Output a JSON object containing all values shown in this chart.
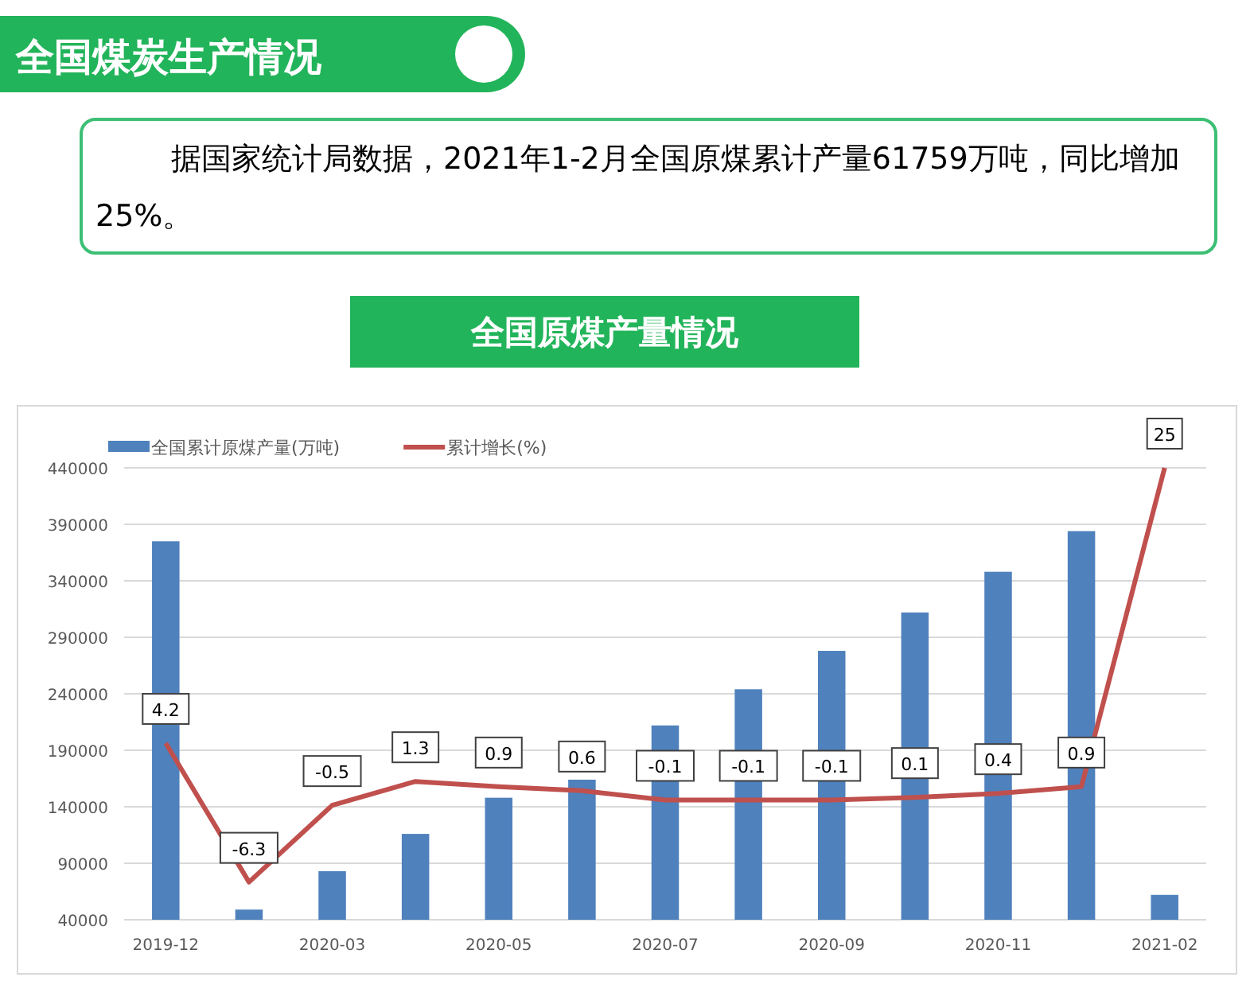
{
  "chart_data": {
    "type": "bar",
    "title": "全国煤炭生产情况",
    "subtitle": "全国原煤产量情况",
    "annotations": [
      "据国家统计局数据，2021年1-2月全国原煤累计产量61759万吨，同比增加25%。"
    ],
    "categories": [
      "2019-12",
      null,
      "2020-03",
      null,
      "2020-05",
      null,
      "2020-07",
      null,
      "2020-09",
      null,
      "2020-11",
      null,
      "2021-02"
    ],
    "series": [
      {
        "name": "全国累计原煤产量(万吨)",
        "color": "#4f81bd",
        "values": [
          375000,
          49000,
          83000,
          116000,
          148000,
          164000,
          212000,
          244000,
          278000,
          312000,
          348000,
          384000,
          62000
        ]
      },
      {
        "name": "累计增长(%)",
        "type": "line",
        "axis": "y2",
        "color": "#c0504d",
        "data_labels": true,
        "marker": "none",
        "values": [
          4.2,
          -6.3,
          -0.5,
          1.3,
          0.9,
          0.6,
          -0.1,
          -0.1,
          -0.1,
          0.1,
          0.4,
          0.9,
          25
        ]
      }
    ],
    "ylim": [
      40000,
      440000
    ],
    "yticks": [
      40000,
      90000,
      140000,
      190000,
      240000,
      290000,
      340000,
      390000,
      440000
    ],
    "y2lim": [
      -9.15,
      25
    ],
    "tick_labels": "xy",
    "grid": "y",
    "legend": "top left"
  }
}
